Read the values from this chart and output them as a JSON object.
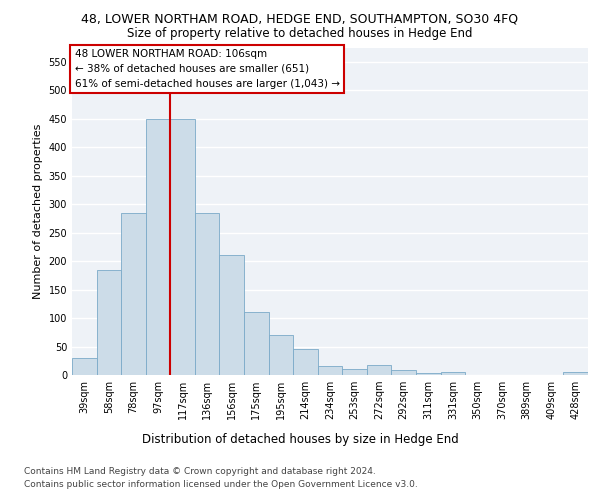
{
  "title": "48, LOWER NORTHAM ROAD, HEDGE END, SOUTHAMPTON, SO30 4FQ",
  "subtitle": "Size of property relative to detached houses in Hedge End",
  "xlabel": "Distribution of detached houses by size in Hedge End",
  "ylabel": "Number of detached properties",
  "categories": [
    "39sqm",
    "58sqm",
    "78sqm",
    "97sqm",
    "117sqm",
    "136sqm",
    "156sqm",
    "175sqm",
    "195sqm",
    "214sqm",
    "234sqm",
    "253sqm",
    "272sqm",
    "292sqm",
    "311sqm",
    "331sqm",
    "350sqm",
    "370sqm",
    "389sqm",
    "409sqm",
    "428sqm"
  ],
  "values": [
    30,
    185,
    285,
    450,
    450,
    285,
    210,
    110,
    70,
    45,
    15,
    10,
    18,
    8,
    3,
    5,
    0,
    0,
    0,
    0,
    5
  ],
  "bar_color": "#ccdce8",
  "bar_edge_color": "#7aaac8",
  "vline_x": 3.5,
  "vline_color": "#cc0000",
  "annotation_text": "48 LOWER NORTHAM ROAD: 106sqm\n← 38% of detached houses are smaller (651)\n61% of semi-detached houses are larger (1,043) →",
  "annotation_box_color": "#ffffff",
  "annotation_box_edge": "#cc0000",
  "ylim": [
    0,
    575
  ],
  "yticks": [
    0,
    50,
    100,
    150,
    200,
    250,
    300,
    350,
    400,
    450,
    500,
    550
  ],
  "footer_line1": "Contains HM Land Registry data © Crown copyright and database right 2024.",
  "footer_line2": "Contains public sector information licensed under the Open Government Licence v3.0.",
  "bg_color": "#eef2f7",
  "grid_color": "#ffffff",
  "title_fontsize": 9,
  "subtitle_fontsize": 8.5,
  "xlabel_fontsize": 8.5,
  "ylabel_fontsize": 8,
  "tick_fontsize": 7,
  "annotation_fontsize": 7.5,
  "footer_fontsize": 6.5
}
